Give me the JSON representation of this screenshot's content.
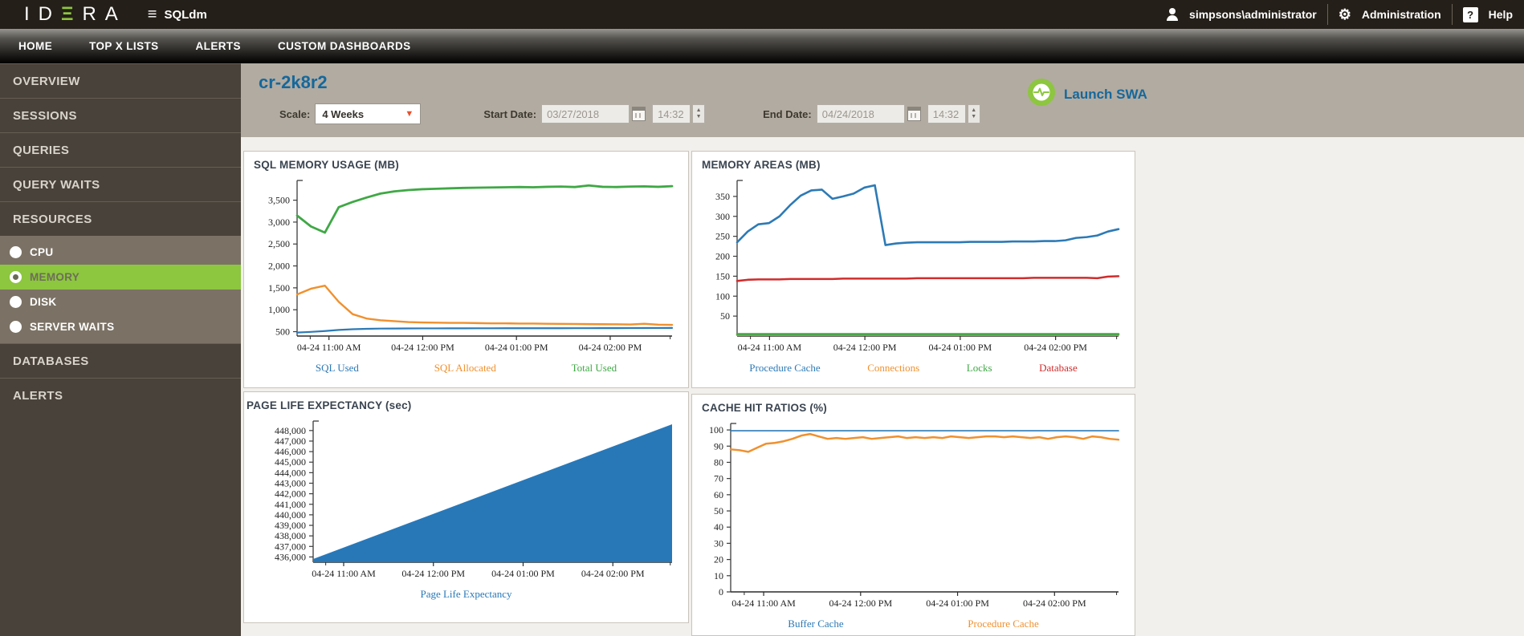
{
  "topbar": {
    "brand_part1": "ID",
    "brand_e": "Ξ",
    "brand_part2": "RA",
    "menu_icon": "≡",
    "app_name": "SQLdm",
    "user": "simpsons\\administrator",
    "admin_label": "Administration",
    "gear_icon": "⚙",
    "help_icon": "?",
    "help_label": "Help"
  },
  "nav": {
    "items": [
      {
        "label": "HOME"
      },
      {
        "label": "TOP X LISTS"
      },
      {
        "label": "ALERTS"
      },
      {
        "label": "CUSTOM DASHBOARDS"
      }
    ]
  },
  "sidebar": {
    "items": [
      {
        "label": "OVERVIEW"
      },
      {
        "label": "SESSIONS"
      },
      {
        "label": "QUERIES"
      },
      {
        "label": "QUERY WAITS"
      },
      {
        "label": "RESOURCES"
      },
      {
        "label": "DATABASES"
      },
      {
        "label": "ALERTS"
      }
    ],
    "resources_sub": [
      {
        "label": "CPU",
        "selected": false
      },
      {
        "label": "MEMORY",
        "selected": true
      },
      {
        "label": "DISK",
        "selected": false
      },
      {
        "label": "SERVER WAITS",
        "selected": false
      }
    ]
  },
  "header": {
    "server_name": "cr-2k8r2",
    "scale_label": "Scale:",
    "scale_value": "4 Weeks",
    "start_date_label": "Start Date:",
    "start_date": "03/27/2018",
    "start_time": "14:32",
    "end_date_label": "End Date:",
    "end_date": "04/24/2018",
    "end_time": "14:32",
    "launch_swa_label": "Launch SWA"
  },
  "icons": {
    "dropdown_arrow": "▼",
    "spinner_up": "▲",
    "spinner_down": "▼"
  },
  "colors": {
    "accent_green": "#8dc63f",
    "link_blue": "#15689c",
    "series_blue": "#2d7ab5",
    "series_orange": "#f0902e",
    "series_green": "#3fa845",
    "series_red": "#d02c2c"
  },
  "chart_data": [
    {
      "type": "line",
      "title": "SQL MEMORY USAGE (MB)",
      "ylim": [
        400,
        3950
      ],
      "grid": false,
      "legend_position": "bottom",
      "ytick_vals": [
        500,
        1000,
        1500,
        2000,
        2500,
        3000,
        3500
      ],
      "ytick_labels": [
        "500",
        "1,000",
        "1,500",
        "2,000",
        "2,500",
        "3,000",
        "3,500"
      ],
      "xticks": [
        {
          "pos": 0.085,
          "label": "04-24 11:00 AM"
        },
        {
          "pos": 0.335,
          "label": "04-24 12:00 PM"
        },
        {
          "pos": 0.585,
          "label": "04-24 01:00 PM"
        },
        {
          "pos": 0.835,
          "label": "04-24 02:00 PM"
        }
      ],
      "series": [
        {
          "name": "SQL Used",
          "color": "#2d7ab5",
          "width": 2.2,
          "values": [
            480,
            495,
            515,
            540,
            555,
            565,
            570,
            572,
            574,
            575,
            575,
            576,
            576,
            577,
            577,
            578,
            578,
            578,
            579,
            579,
            580,
            580,
            581,
            581,
            582,
            583,
            584,
            585
          ]
        },
        {
          "name": "SQL Allocated",
          "color": "#f0902e",
          "width": 2.4,
          "values": [
            1350,
            1480,
            1550,
            1180,
            900,
            800,
            760,
            740,
            720,
            710,
            705,
            700,
            700,
            695,
            690,
            690,
            685,
            685,
            680,
            678,
            675,
            672,
            670,
            668,
            665,
            680,
            660,
            655
          ]
        },
        {
          "name": "Total Used",
          "color": "#3fa845",
          "width": 2.8,
          "values": [
            3150,
            2900,
            2760,
            3340,
            3460,
            3560,
            3650,
            3700,
            3730,
            3750,
            3760,
            3770,
            3780,
            3785,
            3790,
            3795,
            3800,
            3795,
            3805,
            3810,
            3800,
            3835,
            3805,
            3800,
            3810,
            3815,
            3805,
            3820
          ]
        }
      ]
    },
    {
      "type": "line",
      "title": "MEMORY AREAS (MB)",
      "ylim": [
        0,
        390
      ],
      "grid": false,
      "legend_position": "bottom",
      "ytick_vals": [
        50,
        100,
        150,
        200,
        250,
        300,
        350
      ],
      "ytick_labels": [
        "50",
        "100",
        "150",
        "200",
        "250",
        "300",
        "350"
      ],
      "xticks": [
        {
          "pos": 0.085,
          "label": "04-24 11:00 AM"
        },
        {
          "pos": 0.335,
          "label": "04-24 12:00 PM"
        },
        {
          "pos": 0.585,
          "label": "04-24 01:00 PM"
        },
        {
          "pos": 0.835,
          "label": "04-24 02:00 PM"
        }
      ],
      "series": [
        {
          "name": "Procedure Cache",
          "color": "#2d7ab5",
          "width": 2.6,
          "values": [
            235,
            262,
            280,
            283,
            300,
            328,
            352,
            365,
            367,
            344,
            350,
            357,
            372,
            378,
            228,
            232,
            234,
            235,
            235,
            235,
            235,
            235,
            236,
            236,
            236,
            236,
            237,
            237,
            237,
            238,
            238,
            240,
            246,
            248,
            252,
            262,
            268
          ]
        },
        {
          "name": "Connections",
          "color": "#f0902e",
          "width": 2.2,
          "values": [
            2.5,
            2.5
          ]
        },
        {
          "name": "Locks",
          "color": "#3fa845",
          "width": 2.6,
          "values": [
            5,
            5
          ]
        },
        {
          "name": "Database",
          "color": "#d02c2c",
          "width": 2.6,
          "values": [
            138,
            141,
            142,
            142,
            142,
            143,
            143,
            143,
            143,
            143,
            144,
            144,
            144,
            144,
            144,
            144,
            144,
            145,
            145,
            145,
            145,
            145,
            145,
            145,
            145,
            145,
            145,
            145,
            146,
            146,
            146,
            146,
            146,
            146,
            145,
            149,
            150
          ]
        }
      ]
    },
    {
      "type": "area",
      "title": "PAGE LIFE EXPECTANCY (sec)",
      "ylim": [
        435500,
        448900
      ],
      "grid": false,
      "legend_position": "bottom",
      "ytick_vals": [
        436000,
        437000,
        438000,
        439000,
        440000,
        441000,
        442000,
        443000,
        444000,
        445000,
        446000,
        447000,
        448000
      ],
      "ytick_labels": [
        "436,000",
        "437,000",
        "438,000",
        "439,000",
        "440,000",
        "441,000",
        "442,000",
        "443,000",
        "444,000",
        "445,000",
        "446,000",
        "447,000",
        "448,000"
      ],
      "xticks": [
        {
          "pos": 0.085,
          "label": "04-24 11:00 AM"
        },
        {
          "pos": 0.335,
          "label": "04-24 12:00 PM"
        },
        {
          "pos": 0.585,
          "label": "04-24 01:00 PM"
        },
        {
          "pos": 0.835,
          "label": "04-24 02:00 PM"
        }
      ],
      "series": [
        {
          "name": "Page Life Expectancy",
          "color": "#2878b8",
          "width": 2,
          "values": [
            435800,
            448600
          ]
        }
      ]
    },
    {
      "type": "line",
      "title": "CACHE HIT RATIOS (%)",
      "ylim": [
        0,
        104
      ],
      "grid": false,
      "legend_position": "bottom",
      "ytick_vals": [
        0,
        10,
        20,
        30,
        40,
        50,
        60,
        70,
        80,
        90,
        100
      ],
      "ytick_labels": [
        "0",
        "10",
        "20",
        "30",
        "40",
        "50",
        "60",
        "70",
        "80",
        "90",
        "100"
      ],
      "xticks": [
        {
          "pos": 0.085,
          "label": "04-24 11:00 AM"
        },
        {
          "pos": 0.335,
          "label": "04-24 12:00 PM"
        },
        {
          "pos": 0.585,
          "label": "04-24 01:00 PM"
        },
        {
          "pos": 0.835,
          "label": "04-24 02:00 PM"
        }
      ],
      "series": [
        {
          "name": "Buffer Cache",
          "color": "#2d7ab5",
          "width": 1.6,
          "values": [
            99.5,
            99.5
          ]
        },
        {
          "name": "Procedure Cache",
          "color": "#f0902e",
          "width": 2.5,
          "values": [
            88,
            87.5,
            86.5,
            89,
            91.5,
            92,
            93,
            94.5,
            96.5,
            97.5,
            96,
            94.5,
            95,
            94.5,
            95,
            95.5,
            94.5,
            95,
            95.5,
            96,
            95,
            95.5,
            95,
            95.5,
            95,
            96,
            95.5,
            95,
            95.5,
            96,
            96,
            95.5,
            96,
            95.5,
            95,
            95.5,
            94.5,
            95.5,
            96,
            95.5,
            94.5,
            96,
            95.5,
            94.5,
            94
          ]
        }
      ]
    }
  ]
}
